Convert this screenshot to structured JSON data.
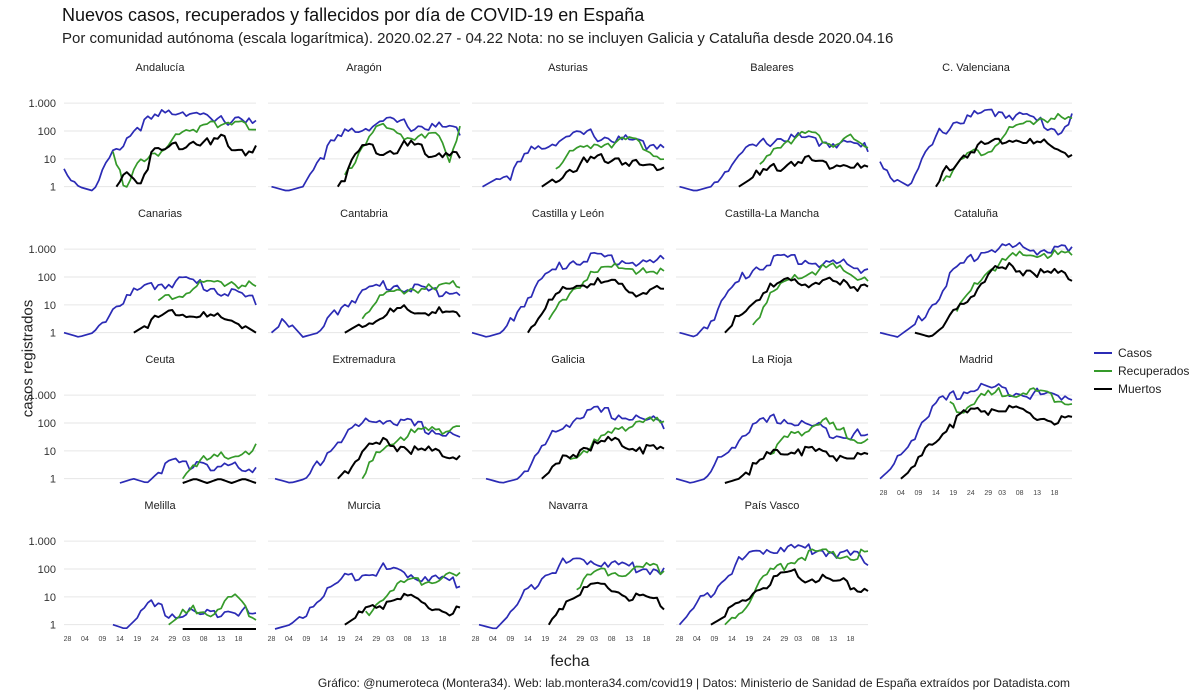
{
  "title": "Nuevos casos, recuperados y fallecidos por día de COVID-19 en España",
  "subtitle": "Por comunidad autónoma (escala logarítmica). 2020.02.27 - 04.22 Nota: no se incluyen Galicia y Cataluña desde 2020.04.16",
  "caption": "Gráfico: @numeroteca (Montera34). Web: lab.montera34.com/covid19 | Datos: Ministerio de Sanidad de España extraídos por Datadista.com",
  "colors": {
    "casos": "#2b2bb5",
    "recuperados": "#359a2a",
    "muertos": "#000000",
    "grid": "#e6e6e6"
  },
  "legend": {
    "position": "right"
  },
  "chart_data": {
    "type": "line",
    "scale": "log",
    "xlabel": "fecha",
    "ylabel": "casos registrados",
    "y_ticks": [
      1,
      10,
      100,
      1000
    ],
    "y_tick_labels": [
      "1",
      "10",
      "100",
      "1.000"
    ],
    "x_tick_labels": [
      "28",
      "04",
      "09",
      "14",
      "19",
      "24",
      "29",
      "03",
      "08",
      "13",
      "18"
    ],
    "series": [
      {
        "key": "casos",
        "name": "Casos"
      },
      {
        "key": "recuperados",
        "name": "Recuperados"
      },
      {
        "key": "muertos",
        "name": "Muertos"
      }
    ],
    "x_start": "2020-02-27",
    "x_end": "2020-04-22",
    "facets": [
      {
        "name": "Andalucía",
        "casos": {
          "start": "2020-02-27",
          "ctrl": [
            4,
            1,
            0.7,
            8,
            40,
            150,
            250,
            450,
            600,
            400,
            200,
            250,
            350,
            150
          ]
        },
        "recuperados": {
          "start": "2020-03-12",
          "ctrl": [
            30,
            0.7,
            5,
            15,
            20,
            40,
            80,
            120,
            300,
            200,
            150,
            150,
            150
          ]
        },
        "muertos": {
          "start": "2020-03-13",
          "ctrl": [
            1,
            4,
            1,
            15,
            20,
            30,
            40,
            50,
            30,
            50,
            30,
            20,
            25
          ]
        }
      },
      {
        "name": "Aragón",
        "casos": {
          "start": "2020-02-28",
          "ctrl": [
            1,
            0.7,
            1,
            10,
            40,
            100,
            150,
            200,
            200,
            150,
            150,
            120,
            100
          ]
        },
        "recuperados": {
          "start": "2020-03-20",
          "ctrl": [
            2,
            10,
            50,
            150,
            100,
            80,
            60,
            80,
            100,
            60,
            5,
            200
          ]
        },
        "muertos": {
          "start": "2020-03-18",
          "ctrl": [
            1,
            5,
            30,
            25,
            20,
            25,
            30,
            20,
            15,
            20,
            10
          ]
        }
      },
      {
        "name": "Asturias",
        "casos": {
          "start": "2020-03-01",
          "ctrl": [
            1,
            2,
            3,
            15,
            30,
            50,
            60,
            80,
            60,
            50,
            40,
            30,
            40
          ]
        },
        "recuperados": {
          "start": "2020-03-22",
          "ctrl": [
            5,
            10,
            20,
            30,
            40,
            40,
            50,
            40,
            30,
            20,
            10
          ]
        },
        "muertos": {
          "start": "2020-03-18",
          "ctrl": [
            1,
            2,
            4,
            6,
            8,
            10,
            12,
            8,
            6,
            5,
            6
          ]
        }
      },
      {
        "name": "Baleares",
        "casos": {
          "start": "2020-02-28",
          "ctrl": [
            1,
            0.7,
            1,
            5,
            15,
            30,
            50,
            60,
            50,
            40,
            40,
            30,
            25
          ]
        },
        "recuperados": {
          "start": "2020-03-22",
          "ctrl": [
            5,
            20,
            40,
            60,
            80,
            60,
            50,
            40,
            60,
            30,
            20
          ]
        },
        "muertos": {
          "start": "2020-03-16",
          "ctrl": [
            1,
            2,
            3,
            5,
            8,
            10,
            8,
            6,
            8,
            5,
            4
          ]
        }
      },
      {
        "name": "C. Valenciana",
        "casos": {
          "start": "2020-02-27",
          "ctrl": [
            5,
            2,
            1,
            10,
            80,
            200,
            300,
            400,
            500,
            400,
            300,
            200,
            100,
            300
          ]
        },
        "recuperados": {
          "start": "2020-03-16",
          "ctrl": [
            2,
            5,
            10,
            15,
            20,
            40,
            80,
            120,
            200,
            300,
            300,
            250,
            200
          ]
        },
        "muertos": {
          "start": "2020-03-14",
          "ctrl": [
            1,
            4,
            10,
            20,
            30,
            40,
            50,
            60,
            40,
            30,
            30,
            20,
            15
          ]
        }
      },
      {
        "name": "Canarias",
        "casos": {
          "start": "2020-02-27",
          "ctrl": [
            1,
            0.7,
            1,
            5,
            15,
            30,
            50,
            60,
            80,
            60,
            40,
            30,
            20,
            15
          ]
        },
        "recuperados": {
          "start": "2020-03-25",
          "ctrl": [
            10,
            20,
            30,
            40,
            50,
            60,
            70,
            50,
            40
          ]
        },
        "muertos": {
          "start": "2020-03-18",
          "ctrl": [
            1,
            2,
            4,
            6,
            5,
            4,
            3,
            3,
            2,
            1
          ]
        }
      },
      {
        "name": "Cantabria",
        "casos": {
          "start": "2020-02-28",
          "ctrl": [
            1,
            3,
            0.7,
            1,
            5,
            15,
            30,
            50,
            50,
            40,
            30,
            30,
            30
          ]
        },
        "recuperados": {
          "start": "2020-03-25",
          "ctrl": [
            5,
            10,
            20,
            30,
            40,
            40,
            30,
            50,
            50
          ]
        },
        "muertos": {
          "start": "2020-03-20",
          "ctrl": [
            1,
            2,
            3,
            5,
            6,
            5,
            6,
            5,
            3
          ]
        }
      },
      {
        "name": "Castilla y León",
        "casos": {
          "start": "2020-02-27",
          "ctrl": [
            1,
            0.7,
            1,
            5,
            30,
            100,
            250,
            400,
            500,
            500,
            400,
            350,
            300,
            400
          ]
        },
        "recuperados": {
          "start": "2020-03-20",
          "ctrl": [
            2,
            10,
            30,
            60,
            100,
            150,
            200,
            250,
            200,
            150,
            100,
            150
          ]
        },
        "muertos": {
          "start": "2020-03-14",
          "ctrl": [
            1,
            5,
            15,
            30,
            50,
            60,
            60,
            50,
            40,
            30,
            30,
            30
          ]
        }
      },
      {
        "name": "Castilla-La Mancha",
        "casos": {
          "start": "2020-02-28",
          "ctrl": [
            1,
            0.7,
            3,
            20,
            100,
            250,
            400,
            500,
            400,
            300,
            300,
            250,
            200
          ]
        },
        "recuperados": {
          "start": "2020-03-20",
          "ctrl": [
            2,
            10,
            30,
            60,
            100,
            150,
            200,
            200,
            150,
            100,
            100
          ]
        },
        "muertos": {
          "start": "2020-03-12",
          "ctrl": [
            1,
            3,
            10,
            30,
            50,
            60,
            70,
            70,
            60,
            50,
            50,
            55
          ]
        }
      },
      {
        "name": "Cataluña",
        "casos": {
          "start": "2020-02-27",
          "ctrl": [
            1,
            0.7,
            2,
            10,
            100,
            400,
            900,
            1200,
            1100,
            1000,
            900,
            800
          ]
        },
        "recuperados": {
          "start": "2020-03-20",
          "ctrl": [
            5,
            30,
            150,
            300,
            500,
            600,
            700,
            600,
            600
          ]
        },
        "muertos": {
          "start": "2020-03-08",
          "ctrl": [
            1,
            0.7,
            2,
            10,
            50,
            150,
            200,
            180,
            150,
            120,
            100
          ]
        }
      },
      {
        "name": "Ceuta",
        "casos": {
          "start": "2020-03-14",
          "ctrl": [
            0.7,
            1,
            0.7,
            2,
            4,
            3,
            5,
            2,
            3,
            2,
            3
          ]
        },
        "recuperados": {
          "start": "2020-04-01",
          "ctrl": [
            1,
            3,
            5,
            4,
            6,
            5,
            8,
            10,
            12
          ]
        },
        "muertos": {
          "start": "2020-04-01",
          "ctrl": [
            0.7,
            1,
            0.7,
            1,
            0.7,
            1,
            0.7
          ]
        }
      },
      {
        "name": "Extremadura",
        "casos": {
          "start": "2020-02-29",
          "ctrl": [
            1,
            0.7,
            1,
            5,
            20,
            60,
            100,
            150,
            100,
            80,
            60,
            40,
            30
          ]
        },
        "recuperados": {
          "start": "2020-03-25",
          "ctrl": [
            1,
            5,
            15,
            30,
            40,
            50,
            60,
            70,
            80
          ]
        },
        "muertos": {
          "start": "2020-03-18",
          "ctrl": [
            1,
            3,
            8,
            15,
            20,
            15,
            12,
            10,
            8,
            8,
            7
          ]
        }
      },
      {
        "name": "Galicia",
        "casos": {
          "start": "2020-03-02",
          "ctrl": [
            1,
            0.7,
            1,
            5,
            30,
            100,
            200,
            250,
            200,
            150,
            120,
            100
          ]
        },
        "recuperados": {
          "start": "2020-03-26",
          "ctrl": [
            5,
            10,
            20,
            40,
            80,
            120,
            100,
            100
          ]
        },
        "muertos": {
          "start": "2020-03-18",
          "ctrl": [
            1,
            3,
            8,
            15,
            20,
            20,
            15,
            12,
            10
          ]
        }
      },
      {
        "name": "La Rioja",
        "casos": {
          "start": "2020-02-27",
          "ctrl": [
            1,
            0.7,
            1,
            5,
            20,
            60,
            100,
            150,
            100,
            80,
            60,
            40,
            40,
            30
          ]
        },
        "recuperados": {
          "start": "2020-03-25",
          "ctrl": [
            5,
            20,
            40,
            60,
            80,
            100,
            60,
            40,
            30,
            30
          ]
        },
        "muertos": {
          "start": "2020-03-12",
          "ctrl": [
            0.7,
            1,
            3,
            6,
            10,
            12,
            10,
            8,
            7,
            6,
            5
          ]
        }
      },
      {
        "name": "Madrid",
        "casos": {
          "start": "2020-02-27",
          "ctrl": [
            1,
            3,
            20,
            150,
            500,
            900,
            1500,
            2000,
            1600,
            1500,
            1200,
            1000,
            900,
            1000
          ]
        },
        "recuperados": {
          "start": "2020-03-18",
          "ctrl": [
            600,
            300,
            500,
            900,
            1200,
            1400,
            1300,
            1200,
            1000,
            800,
            700
          ]
        },
        "muertos": {
          "start": "2020-03-04",
          "ctrl": [
            1,
            3,
            20,
            80,
            200,
            300,
            330,
            280,
            200,
            150,
            120,
            110
          ]
        }
      },
      {
        "name": "Melilla",
        "casos": {
          "start": "2020-03-12",
          "ctrl": [
            1,
            0.7,
            2,
            5,
            3,
            2,
            3,
            2,
            3,
            4,
            3,
            2
          ]
        },
        "recuperados": {
          "start": "2020-03-28",
          "ctrl": [
            1,
            2,
            3,
            4,
            3,
            5,
            10,
            4,
            2
          ]
        },
        "muertos": {
          "start": "2020-04-01",
          "ctrl": [
            0.7,
            0.7,
            0.7
          ]
        }
      },
      {
        "name": "Murcia",
        "casos": {
          "start": "2020-02-29",
          "ctrl": [
            0.7,
            1,
            3,
            10,
            30,
            60,
            80,
            100,
            80,
            60,
            50,
            40,
            30
          ]
        },
        "recuperados": {
          "start": "2020-03-26",
          "ctrl": [
            2,
            10,
            20,
            30,
            40,
            50,
            60,
            50
          ]
        },
        "muertos": {
          "start": "2020-03-20",
          "ctrl": [
            1,
            2,
            4,
            6,
            10,
            8,
            5,
            4,
            3,
            3
          ]
        }
      },
      {
        "name": "Navarra",
        "casos": {
          "start": "2020-02-29",
          "ctrl": [
            1,
            0.7,
            3,
            20,
            80,
            150,
            200,
            200,
            150,
            120,
            100,
            100
          ]
        },
        "recuperados": {
          "start": "2020-03-28",
          "ctrl": [
            20,
            50,
            80,
            100,
            80,
            100,
            120,
            100
          ]
        },
        "muertos": {
          "start": "2020-03-20",
          "ctrl": [
            1,
            5,
            10,
            15,
            20,
            25,
            15,
            10,
            8,
            6,
            5
          ]
        }
      },
      {
        "name": "País Vasco",
        "casos": {
          "start": "2020-02-28",
          "ctrl": [
            1,
            5,
            20,
            100,
            300,
            500,
            600,
            550,
            500,
            400,
            300,
            200
          ]
        },
        "recuperados": {
          "start": "2020-03-12",
          "ctrl": [
            1,
            3,
            10,
            50,
            100,
            200,
            300,
            400,
            300,
            300,
            300,
            350
          ]
        },
        "muertos": {
          "start": "2020-03-08",
          "ctrl": [
            1,
            2,
            5,
            15,
            30,
            50,
            60,
            50,
            40,
            30,
            25,
            20
          ]
        }
      }
    ]
  }
}
